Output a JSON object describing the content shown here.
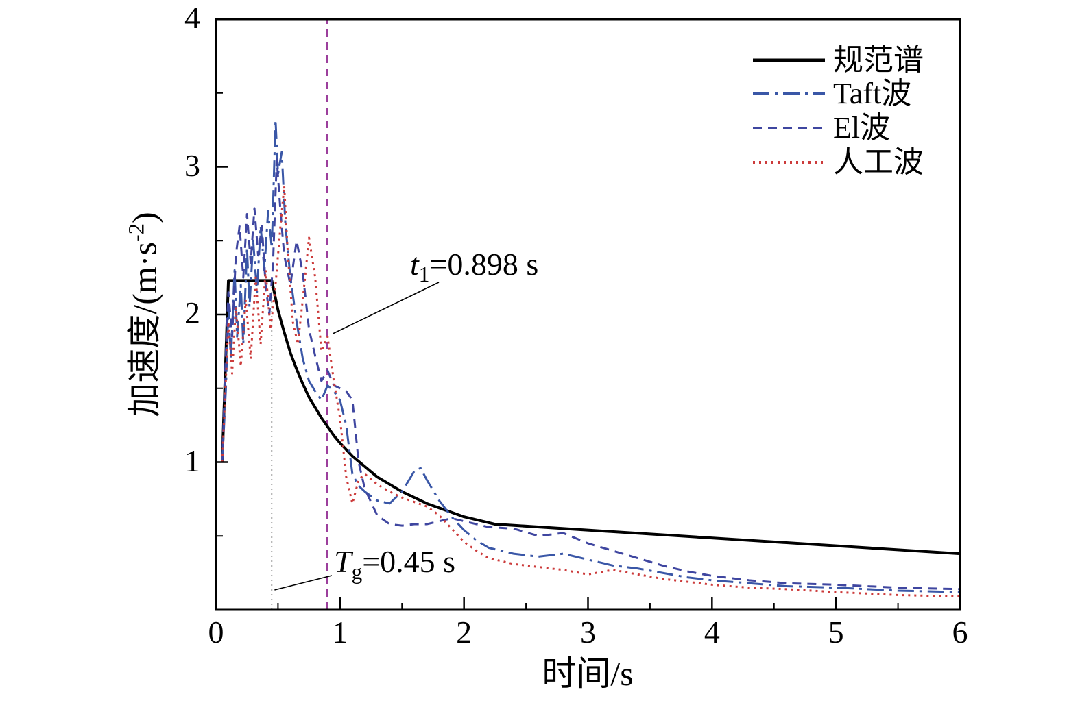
{
  "chart_data": {
    "type": "line",
    "title": "",
    "xlabel": "时间/s",
    "ylabel_main": "加速度/(m·s",
    "ylabel_sup": "-2",
    "ylabel_close": ")",
    "xlim": [
      0,
      6
    ],
    "ylim": [
      0,
      4
    ],
    "x_ticks": [
      "0",
      "1",
      "2",
      "3",
      "4",
      "5",
      "6"
    ],
    "y_ticks": [
      "1",
      "2",
      "3",
      "4"
    ],
    "grid": false,
    "legend_position": "top-right-inside",
    "series": [
      {
        "name": "规范谱",
        "style": "solid",
        "color": "#000000",
        "width": 4,
        "dash": "",
        "points": [
          [
            0.05,
            1.0
          ],
          [
            0.1,
            2.23
          ],
          [
            0.45,
            2.23
          ],
          [
            0.5,
            2.03
          ],
          [
            0.55,
            1.88
          ],
          [
            0.6,
            1.74
          ],
          [
            0.65,
            1.63
          ],
          [
            0.7,
            1.53
          ],
          [
            0.75,
            1.44
          ],
          [
            0.8,
            1.37
          ],
          [
            0.85,
            1.3
          ],
          [
            0.9,
            1.24
          ],
          [
            0.95,
            1.18
          ],
          [
            1.0,
            1.13
          ],
          [
            1.1,
            1.04
          ],
          [
            1.2,
            0.97
          ],
          [
            1.3,
            0.9
          ],
          [
            1.4,
            0.85
          ],
          [
            1.5,
            0.8
          ],
          [
            1.6,
            0.76
          ],
          [
            1.7,
            0.72
          ],
          [
            1.8,
            0.69
          ],
          [
            1.9,
            0.66
          ],
          [
            2.0,
            0.63
          ],
          [
            2.1,
            0.61
          ],
          [
            2.25,
            0.58
          ],
          [
            6.0,
            0.38
          ]
        ]
      },
      {
        "name": "Taft波",
        "style": "dash-dot",
        "color": "#3a57a7",
        "width": 3,
        "dash": "24,8,4,8",
        "points": [
          [
            0.05,
            1.0
          ],
          [
            0.08,
            1.5
          ],
          [
            0.1,
            2.05
          ],
          [
            0.12,
            1.7
          ],
          [
            0.15,
            2.3
          ],
          [
            0.17,
            1.85
          ],
          [
            0.2,
            2.2
          ],
          [
            0.22,
            1.8
          ],
          [
            0.25,
            2.45
          ],
          [
            0.27,
            2.05
          ],
          [
            0.3,
            2.5
          ],
          [
            0.33,
            2.15
          ],
          [
            0.36,
            2.6
          ],
          [
            0.39,
            2.3
          ],
          [
            0.42,
            2.7
          ],
          [
            0.45,
            2.45
          ],
          [
            0.48,
            3.32
          ],
          [
            0.5,
            2.95
          ],
          [
            0.53,
            3.1
          ],
          [
            0.56,
            2.6
          ],
          [
            0.6,
            2.25
          ],
          [
            0.65,
            1.95
          ],
          [
            0.7,
            1.7
          ],
          [
            0.75,
            1.55
          ],
          [
            0.8,
            1.48
          ],
          [
            0.85,
            1.42
          ],
          [
            0.9,
            1.52
          ],
          [
            0.95,
            1.48
          ],
          [
            1.0,
            1.42
          ],
          [
            1.05,
            1.25
          ],
          [
            1.1,
            0.92
          ],
          [
            1.15,
            0.84
          ],
          [
            1.2,
            0.8
          ],
          [
            1.3,
            0.74
          ],
          [
            1.4,
            0.72
          ],
          [
            1.5,
            0.8
          ],
          [
            1.6,
            0.94
          ],
          [
            1.65,
            0.96
          ],
          [
            1.7,
            0.88
          ],
          [
            1.8,
            0.74
          ],
          [
            1.9,
            0.63
          ],
          [
            2.0,
            0.54
          ],
          [
            2.1,
            0.47
          ],
          [
            2.2,
            0.42
          ],
          [
            2.4,
            0.38
          ],
          [
            2.6,
            0.36
          ],
          [
            2.8,
            0.38
          ],
          [
            3.0,
            0.34
          ],
          [
            3.2,
            0.3
          ],
          [
            3.4,
            0.28
          ],
          [
            3.6,
            0.25
          ],
          [
            3.8,
            0.22
          ],
          [
            4.0,
            0.2
          ],
          [
            4.3,
            0.18
          ],
          [
            4.6,
            0.16
          ],
          [
            5.0,
            0.15
          ],
          [
            5.5,
            0.13
          ],
          [
            6.0,
            0.12
          ]
        ]
      },
      {
        "name": "El波",
        "style": "dashed",
        "color": "#3f46a0",
        "width": 3,
        "dash": "13,9",
        "points": [
          [
            0.05,
            1.0
          ],
          [
            0.08,
            1.75
          ],
          [
            0.1,
            2.15
          ],
          [
            0.13,
            1.85
          ],
          [
            0.16,
            2.4
          ],
          [
            0.19,
            2.6
          ],
          [
            0.22,
            2.25
          ],
          [
            0.25,
            2.68
          ],
          [
            0.28,
            2.35
          ],
          [
            0.31,
            2.72
          ],
          [
            0.34,
            2.4
          ],
          [
            0.37,
            2.6
          ],
          [
            0.4,
            2.2
          ],
          [
            0.43,
            2.0
          ],
          [
            0.46,
            2.35
          ],
          [
            0.49,
            3.05
          ],
          [
            0.52,
            2.7
          ],
          [
            0.55,
            2.4
          ],
          [
            0.6,
            2.2
          ],
          [
            0.65,
            2.5
          ],
          [
            0.7,
            2.28
          ],
          [
            0.75,
            1.9
          ],
          [
            0.8,
            1.72
          ],
          [
            0.85,
            1.55
          ],
          [
            0.9,
            1.62
          ],
          [
            0.95,
            1.52
          ],
          [
            1.0,
            1.5
          ],
          [
            1.05,
            1.48
          ],
          [
            1.1,
            1.42
          ],
          [
            1.15,
            1.0
          ],
          [
            1.2,
            0.82
          ],
          [
            1.3,
            0.64
          ],
          [
            1.4,
            0.58
          ],
          [
            1.5,
            0.57
          ],
          [
            1.6,
            0.58
          ],
          [
            1.7,
            0.58
          ],
          [
            1.8,
            0.6
          ],
          [
            1.9,
            0.62
          ],
          [
            2.0,
            0.6
          ],
          [
            2.2,
            0.56
          ],
          [
            2.4,
            0.55
          ],
          [
            2.6,
            0.5
          ],
          [
            2.8,
            0.52
          ],
          [
            3.0,
            0.45
          ],
          [
            3.2,
            0.4
          ],
          [
            3.4,
            0.35
          ],
          [
            3.6,
            0.3
          ],
          [
            3.8,
            0.26
          ],
          [
            4.0,
            0.23
          ],
          [
            4.3,
            0.2
          ],
          [
            4.6,
            0.18
          ],
          [
            5.0,
            0.17
          ],
          [
            5.5,
            0.15
          ],
          [
            6.0,
            0.14
          ]
        ]
      },
      {
        "name": "人工波",
        "style": "dotted",
        "color": "#cc3b3b",
        "width": 3,
        "dash": "3,6",
        "points": [
          [
            0.05,
            1.0
          ],
          [
            0.1,
            1.95
          ],
          [
            0.13,
            1.6
          ],
          [
            0.16,
            2.05
          ],
          [
            0.2,
            1.65
          ],
          [
            0.24,
            2.1
          ],
          [
            0.28,
            1.7
          ],
          [
            0.32,
            2.25
          ],
          [
            0.36,
            1.8
          ],
          [
            0.4,
            2.3
          ],
          [
            0.44,
            1.9
          ],
          [
            0.48,
            2.2
          ],
          [
            0.52,
            2.6
          ],
          [
            0.55,
            2.87
          ],
          [
            0.58,
            2.4
          ],
          [
            0.62,
            1.95
          ],
          [
            0.66,
            1.8
          ],
          [
            0.7,
            2.1
          ],
          [
            0.75,
            2.52
          ],
          [
            0.8,
            2.25
          ],
          [
            0.85,
            1.75
          ],
          [
            0.9,
            1.85
          ],
          [
            0.95,
            1.55
          ],
          [
            1.0,
            1.3
          ],
          [
            1.05,
            0.9
          ],
          [
            1.1,
            0.72
          ],
          [
            1.15,
            0.88
          ],
          [
            1.2,
            0.92
          ],
          [
            1.3,
            0.85
          ],
          [
            1.4,
            0.8
          ],
          [
            1.5,
            0.76
          ],
          [
            1.6,
            0.73
          ],
          [
            1.7,
            0.7
          ],
          [
            1.8,
            0.64
          ],
          [
            1.9,
            0.55
          ],
          [
            2.0,
            0.46
          ],
          [
            2.1,
            0.4
          ],
          [
            2.2,
            0.35
          ],
          [
            2.4,
            0.31
          ],
          [
            2.6,
            0.29
          ],
          [
            2.8,
            0.27
          ],
          [
            3.0,
            0.24
          ],
          [
            3.2,
            0.27
          ],
          [
            3.4,
            0.24
          ],
          [
            3.6,
            0.21
          ],
          [
            3.8,
            0.19
          ],
          [
            4.0,
            0.17
          ],
          [
            4.3,
            0.15
          ],
          [
            4.6,
            0.14
          ],
          [
            5.0,
            0.12
          ],
          [
            5.5,
            0.1
          ],
          [
            6.0,
            0.09
          ]
        ]
      }
    ],
    "vlines": [
      {
        "name": "t1-marker-line",
        "x": 0.898,
        "y0": 0,
        "y1": 4,
        "color": "#9c3f9c",
        "dash": "11,8",
        "width": 3
      },
      {
        "name": "tg-marker-line",
        "x": 0.45,
        "y0": 0,
        "y1": 2.23,
        "color": "#444444",
        "dash": "2,5",
        "width": 1.5
      }
    ],
    "annotations": {
      "t1": {
        "var": "t",
        "sub": "1",
        "rest": "=0.898 s"
      },
      "tg": {
        "var": "T",
        "sub": "g",
        "rest": "=0.45 s"
      }
    }
  }
}
